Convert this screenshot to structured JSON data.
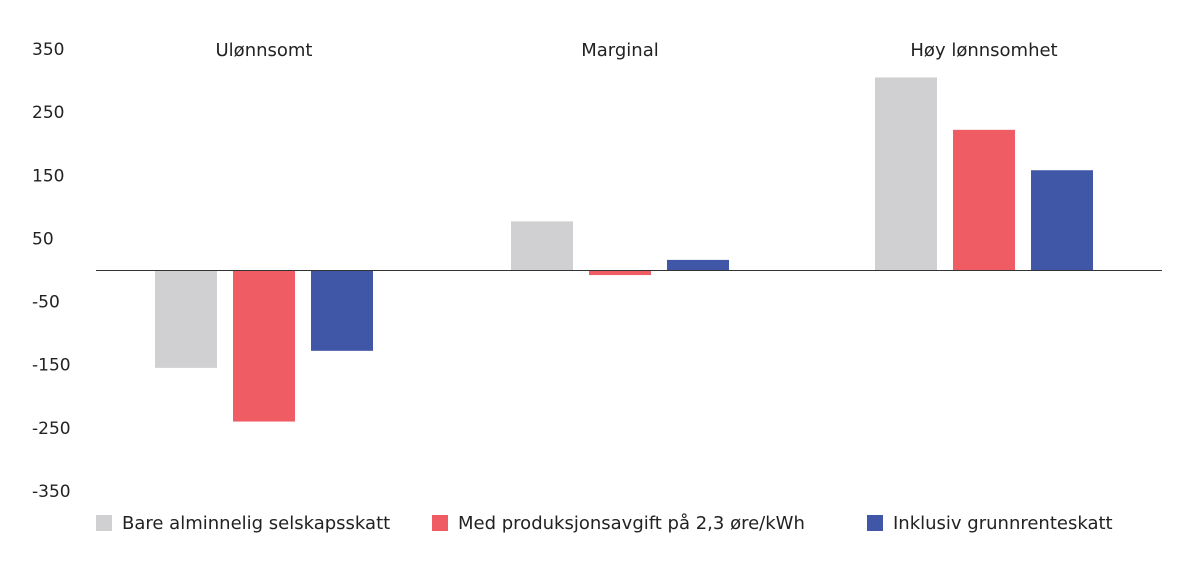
{
  "chart_data": {
    "type": "bar",
    "title": "",
    "xlabel": "",
    "ylabel": "",
    "categories": [
      "Ulønnsomt",
      "Marginal",
      "Høy lønnsomhet"
    ],
    "series": [
      {
        "name": "Bare alminnelig selskapsskatt",
        "color": "#d0d0d2",
        "values": [
          -155,
          77,
          305
        ]
      },
      {
        "name": "Med produksjonsavgift på 2,3 øre/kWh",
        "color": "#f05c64",
        "values": [
          -240,
          -8,
          222
        ]
      },
      {
        "name": "Inklusiv grunnrenteskatt",
        "color": "#4057a8",
        "values": [
          -128,
          16,
          158
        ]
      }
    ],
    "yticks": [
      350,
      250,
      150,
      50,
      -50,
      -150,
      -250,
      -350
    ],
    "ytick_labels": [
      "350",
      "250",
      "150",
      "50",
      "-50",
      "-150",
      "-250",
      "-350"
    ],
    "ylim": [
      -350,
      350
    ],
    "grid": false,
    "legend_position": "bottom-left"
  }
}
